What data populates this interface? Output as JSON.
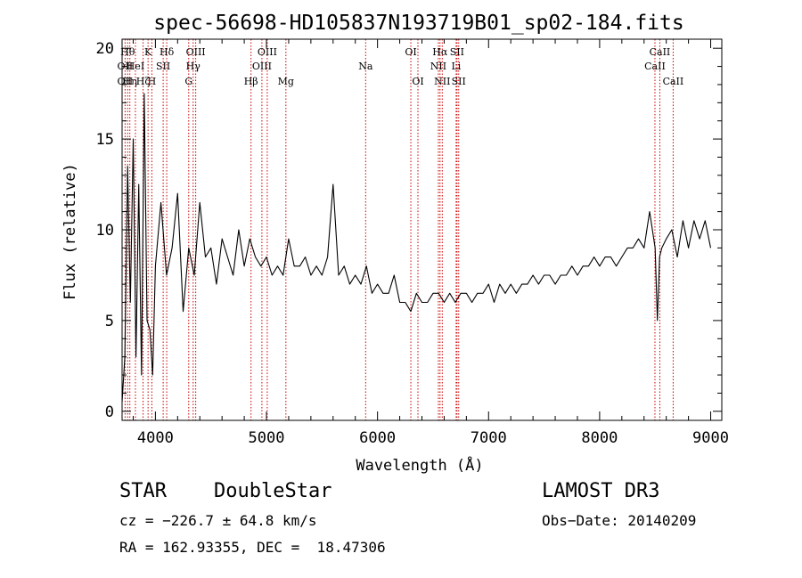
{
  "chart_data": {
    "type": "line",
    "title": "spec-56698-HD105837N193719B01_sp02-184.fits",
    "xlabel": "Wavelength (Å)",
    "ylabel": "Flux (relative)",
    "xlim": [
      3700,
      9100
    ],
    "ylim": [
      -0.5,
      20.5
    ],
    "xticks": [
      4000,
      5000,
      6000,
      7000,
      8000,
      9000
    ],
    "yticks": [
      0,
      5,
      10,
      15,
      20
    ],
    "line_color": "#000000",
    "marker_color": "#cc0000",
    "series": [
      {
        "name": "flux",
        "x": [
          3700,
          3725,
          3750,
          3775,
          3800,
          3825,
          3850,
          3875,
          3900,
          3925,
          3950,
          3975,
          4000,
          4050,
          4100,
          4150,
          4200,
          4250,
          4300,
          4350,
          4400,
          4450,
          4500,
          4550,
          4600,
          4650,
          4700,
          4750,
          4800,
          4850,
          4900,
          4950,
          5000,
          5050,
          5100,
          5150,
          5200,
          5250,
          5300,
          5350,
          5400,
          5450,
          5500,
          5550,
          5600,
          5650,
          5700,
          5750,
          5800,
          5850,
          5900,
          5950,
          6000,
          6050,
          6100,
          6150,
          6200,
          6250,
          6300,
          6350,
          6400,
          6450,
          6500,
          6550,
          6600,
          6650,
          6700,
          6750,
          6800,
          6850,
          6900,
          6950,
          7000,
          7050,
          7100,
          7150,
          7200,
          7250,
          7300,
          7350,
          7400,
          7450,
          7500,
          7550,
          7600,
          7650,
          7700,
          7750,
          7800,
          7850,
          7900,
          7950,
          8000,
          8050,
          8100,
          8150,
          8200,
          8250,
          8300,
          8350,
          8400,
          8450,
          8500,
          8520,
          8540,
          8560,
          8600,
          8650,
          8700,
          8750,
          8800,
          8850,
          8900,
          8950,
          9000
        ],
        "values": [
          0.5,
          3.0,
          13.5,
          6.0,
          15.0,
          3.0,
          12.5,
          2.0,
          17.5,
          5.0,
          4.5,
          2.0,
          8.0,
          11.5,
          7.5,
          9.0,
          12.0,
          5.5,
          9.0,
          7.5,
          11.5,
          8.5,
          9.0,
          7.0,
          9.5,
          8.5,
          7.5,
          10.0,
          8.0,
          9.5,
          8.5,
          8.0,
          8.5,
          7.5,
          8.0,
          7.5,
          9.5,
          8.0,
          8.0,
          8.5,
          7.5,
          8.0,
          7.5,
          8.5,
          12.5,
          7.5,
          8.0,
          7.0,
          7.5,
          7.0,
          8.0,
          6.5,
          7.0,
          6.5,
          6.5,
          7.5,
          6.0,
          6.0,
          5.5,
          6.5,
          6.0,
          6.0,
          6.5,
          6.5,
          6.0,
          6.5,
          6.0,
          6.5,
          6.5,
          6.0,
          6.5,
          6.5,
          7.0,
          6.0,
          7.0,
          6.5,
          7.0,
          6.5,
          7.0,
          7.0,
          7.5,
          7.0,
          7.5,
          7.5,
          7.0,
          7.5,
          7.5,
          8.0,
          7.5,
          8.0,
          8.0,
          8.5,
          8.0,
          8.5,
          8.5,
          8.0,
          8.5,
          9.0,
          9.0,
          9.5,
          9.0,
          11.0,
          9.0,
          5.0,
          8.5,
          9.0,
          9.5,
          10.0,
          8.5,
          10.5,
          9.0,
          10.5,
          9.5,
          10.5,
          9.0
        ]
      }
    ],
    "lines": [
      {
        "x": 3727,
        "labels": [
          "OII",
          "OII"
        ],
        "rows": [
          1,
          2
        ]
      },
      {
        "x": 3750,
        "labels": [
          "Hθ"
        ],
        "rows": [
          0
        ]
      },
      {
        "x": 3770,
        "labels": [
          "Hη"
        ],
        "rows": [
          2
        ]
      },
      {
        "x": 3820,
        "labels": [
          "HeI"
        ],
        "rows": [
          1
        ]
      },
      {
        "x": 3889,
        "labels": [
          "Hζ"
        ],
        "rows": [
          2
        ]
      },
      {
        "x": 3934,
        "labels": [
          "K"
        ],
        "rows": [
          0
        ]
      },
      {
        "x": 3968,
        "labels": [
          "H"
        ],
        "rows": [
          2
        ]
      },
      {
        "x": 4070,
        "labels": [
          "SII"
        ],
        "rows": [
          1
        ]
      },
      {
        "x": 4102,
        "labels": [
          "Hδ"
        ],
        "rows": [
          0
        ]
      },
      {
        "x": 4300,
        "labels": [
          "G"
        ],
        "rows": [
          2
        ]
      },
      {
        "x": 4340,
        "labels": [
          "Hγ"
        ],
        "rows": [
          1
        ]
      },
      {
        "x": 4363,
        "labels": [
          "OIII"
        ],
        "rows": [
          0
        ]
      },
      {
        "x": 4861,
        "labels": [
          "Hβ"
        ],
        "rows": [
          2
        ]
      },
      {
        "x": 4959,
        "labels": [
          "OIII"
        ],
        "rows": [
          1
        ]
      },
      {
        "x": 5007,
        "labels": [
          "OIII"
        ],
        "rows": [
          0
        ]
      },
      {
        "x": 5175,
        "labels": [
          "Mg"
        ],
        "rows": [
          2
        ]
      },
      {
        "x": 5893,
        "labels": [
          "Na"
        ],
        "rows": [
          1
        ]
      },
      {
        "x": 6300,
        "labels": [
          "OI"
        ],
        "rows": [
          0
        ]
      },
      {
        "x": 6364,
        "labels": [
          "OI"
        ],
        "rows": [
          2
        ]
      },
      {
        "x": 6548,
        "labels": [
          "NII"
        ],
        "rows": [
          1
        ]
      },
      {
        "x": 6563,
        "labels": [
          "Hα"
        ],
        "rows": [
          0
        ]
      },
      {
        "x": 6583,
        "labels": [
          "NII"
        ],
        "rows": [
          2
        ]
      },
      {
        "x": 6708,
        "labels": [
          "Li"
        ],
        "rows": [
          1
        ]
      },
      {
        "x": 6716,
        "labels": [
          "SII"
        ],
        "rows": [
          0
        ]
      },
      {
        "x": 6731,
        "labels": [
          "SII"
        ],
        "rows": [
          2
        ]
      },
      {
        "x": 8498,
        "labels": [
          "CaII"
        ],
        "rows": [
          1
        ]
      },
      {
        "x": 8542,
        "labels": [
          "CaII"
        ],
        "rows": [
          0
        ]
      },
      {
        "x": 8662,
        "labels": [
          "CaII"
        ],
        "rows": [
          2
        ]
      }
    ]
  },
  "info": {
    "class_label": "STAR",
    "subclass": "DoubleStar",
    "survey": "LAMOST DR3",
    "cz": "cz = −226.7 ± 64.8 km/s",
    "obs_date": "Obs−Date: 20140209",
    "coords": "RA = 162.93355, DEC =  18.47306"
  }
}
